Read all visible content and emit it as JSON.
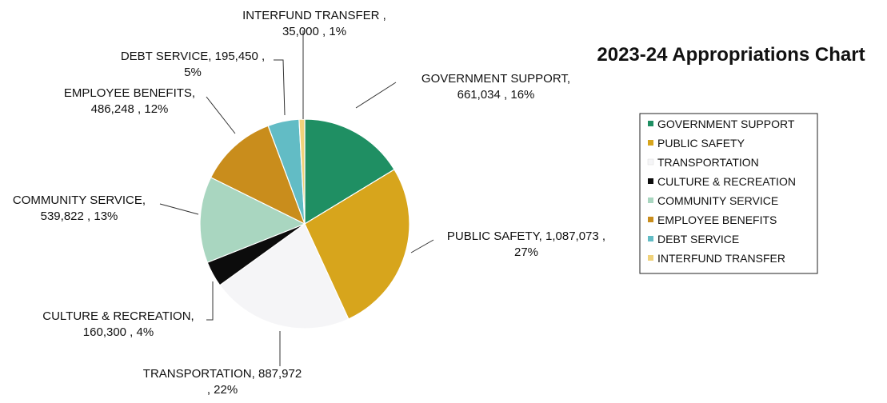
{
  "chart_data": {
    "type": "pie",
    "title": "2023-24 Appropriations Chart",
    "slices": [
      {
        "name": "GOVERNMENT SUPPORT",
        "value": 661034,
        "percent": 16,
        "color": "#1f8f63",
        "label_lines": [
          "GOVERNMENT SUPPORT,",
          "661,034 , 16%"
        ]
      },
      {
        "name": "PUBLIC SAFETY",
        "value": 1087073,
        "percent": 27,
        "color": "#d7a51c",
        "label_lines": [
          "PUBLIC SAFETY,  1,087,073 ,",
          "27%"
        ]
      },
      {
        "name": "TRANSPORTATION",
        "value": 887972,
        "percent": 22,
        "color": "#f5f5f7",
        "label_lines": [
          "TRANSPORTATION,  887,972",
          ", 22%"
        ]
      },
      {
        "name": "CULTURE & RECREATION",
        "value": 160300,
        "percent": 4,
        "color": "#0c0c0c",
        "label_lines": [
          "CULTURE & RECREATION,",
          "160,300 , 4%"
        ]
      },
      {
        "name": "COMMUNITY SERVICE",
        "value": 539822,
        "percent": 13,
        "color": "#a9d6c0",
        "label_lines": [
          "COMMUNITY SERVICE,",
          "539,822 , 13%"
        ]
      },
      {
        "name": "EMPLOYEE BENEFITS",
        "value": 486248,
        "percent": 12,
        "color": "#c98d1c",
        "label_lines": [
          "EMPLOYEE BENEFITS,",
          "486,248 , 12%"
        ]
      },
      {
        "name": "DEBT SERVICE",
        "value": 195450,
        "percent": 5,
        "color": "#62bcc5",
        "label_lines": [
          "DEBT SERVICE,  195,450 ,",
          "5%"
        ]
      },
      {
        "name": "INTERFUND TRANSFER",
        "value": 35000,
        "percent": 1,
        "color": "#f0d27a",
        "label_lines": [
          "INTERFUND TRANSFER ,",
          "35,000 , 1%"
        ]
      }
    ],
    "legend": {
      "placement": "right",
      "entries": [
        {
          "name": "GOVERNMENT SUPPORT",
          "color": "#1f8f63"
        },
        {
          "name": "PUBLIC SAFETY",
          "color": "#d7a51c"
        },
        {
          "name": "TRANSPORTATION",
          "color": "#f5f5f7"
        },
        {
          "name": "CULTURE & RECREATION",
          "color": "#0c0c0c"
        },
        {
          "name": "COMMUNITY SERVICE",
          "color": "#a9d6c0"
        },
        {
          "name": "EMPLOYEE BENEFITS",
          "color": "#c98d1c"
        },
        {
          "name": "DEBT SERVICE",
          "color": "#62bcc5"
        },
        {
          "name": "INTERFUND TRANSFER",
          "color": "#f0d27a"
        }
      ]
    }
  }
}
